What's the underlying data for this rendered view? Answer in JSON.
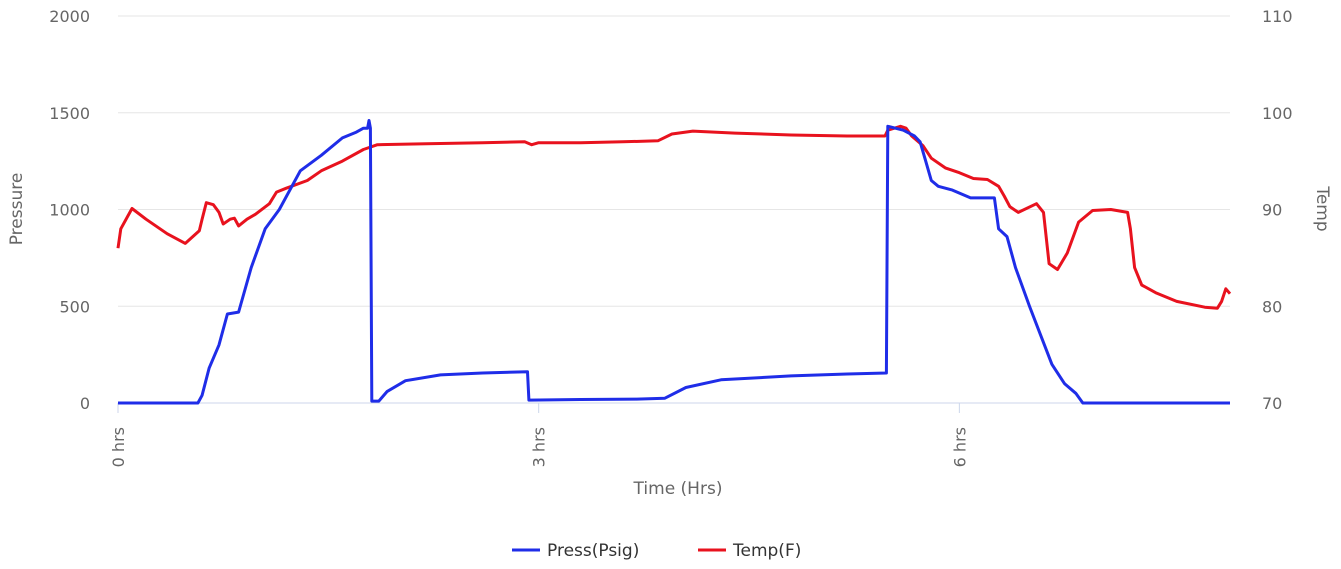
{
  "chart_data": {
    "type": "line",
    "title": "",
    "xlabel": "Time (Hrs)",
    "ylabel_left": "Pressure",
    "ylabel_right": "Temp",
    "x_unit": "hours",
    "x_ticks": [
      {
        "value": 0,
        "label": "0 hrs"
      },
      {
        "value": 3,
        "label": "3 hrs"
      },
      {
        "value": 6,
        "label": "6 hrs"
      }
    ],
    "xlim": [
      0,
      7.93
    ],
    "y_left_ticks": [
      "0",
      "500",
      "1000",
      "1500",
      "2000"
    ],
    "ylim_left": [
      0,
      2000
    ],
    "y_right_ticks": [
      "70",
      "80",
      "90",
      "100",
      "110"
    ],
    "ylim_right": [
      70,
      110
    ],
    "grid": true,
    "legend_position": "bottom",
    "series": [
      {
        "name": "Press(Psig)",
        "axis": "left",
        "color": "#1f2de8",
        "points": [
          [
            0,
            0
          ],
          [
            0.57,
            0
          ],
          [
            0.6,
            40
          ],
          [
            0.65,
            180
          ],
          [
            0.72,
            300
          ],
          [
            0.78,
            460
          ],
          [
            0.86,
            470
          ],
          [
            0.95,
            700
          ],
          [
            1.05,
            900
          ],
          [
            1.15,
            1000
          ],
          [
            1.3,
            1200
          ],
          [
            1.45,
            1280
          ],
          [
            1.6,
            1370
          ],
          [
            1.7,
            1400
          ],
          [
            1.75,
            1420
          ],
          [
            1.78,
            1420
          ],
          [
            1.79,
            1460
          ],
          [
            1.8,
            1420
          ],
          [
            1.81,
            10
          ],
          [
            1.86,
            10
          ],
          [
            1.92,
            60
          ],
          [
            2.05,
            115
          ],
          [
            2.3,
            145
          ],
          [
            2.6,
            155
          ],
          [
            2.92,
            162
          ],
          [
            2.93,
            15
          ],
          [
            3.3,
            18
          ],
          [
            3.7,
            20
          ],
          [
            3.9,
            25
          ],
          [
            4.05,
            80
          ],
          [
            4.3,
            120
          ],
          [
            4.8,
            140
          ],
          [
            5.2,
            150
          ],
          [
            5.48,
            155
          ],
          [
            5.49,
            1430
          ],
          [
            5.6,
            1410
          ],
          [
            5.68,
            1380
          ],
          [
            5.72,
            1350
          ],
          [
            5.76,
            1250
          ],
          [
            5.8,
            1150
          ],
          [
            5.85,
            1120
          ],
          [
            5.95,
            1100
          ],
          [
            6.08,
            1060
          ],
          [
            6.25,
            1060
          ],
          [
            6.28,
            900
          ],
          [
            6.34,
            860
          ],
          [
            6.4,
            700
          ],
          [
            6.5,
            500
          ],
          [
            6.58,
            350
          ],
          [
            6.66,
            200
          ],
          [
            6.75,
            100
          ],
          [
            6.83,
            50
          ],
          [
            6.88,
            0
          ],
          [
            7.93,
            0
          ]
        ]
      },
      {
        "name": "Temp(F)",
        "axis": "right",
        "color": "#e8121e",
        "points": [
          [
            0,
            86
          ],
          [
            0.02,
            88
          ],
          [
            0.1,
            90.1
          ],
          [
            0.2,
            89
          ],
          [
            0.35,
            87.5
          ],
          [
            0.48,
            86.5
          ],
          [
            0.58,
            87.8
          ],
          [
            0.6,
            89
          ],
          [
            0.63,
            90.7
          ],
          [
            0.68,
            90.5
          ],
          [
            0.72,
            89.7
          ],
          [
            0.75,
            88.5
          ],
          [
            0.8,
            89
          ],
          [
            0.83,
            89.1
          ],
          [
            0.86,
            88.3
          ],
          [
            0.92,
            89
          ],
          [
            0.98,
            89.5
          ],
          [
            1.08,
            90.6
          ],
          [
            1.13,
            91.8
          ],
          [
            1.2,
            92.2
          ],
          [
            1.35,
            93
          ],
          [
            1.45,
            94
          ],
          [
            1.6,
            95
          ],
          [
            1.75,
            96.2
          ],
          [
            1.85,
            96.7
          ],
          [
            2.2,
            96.8
          ],
          [
            2.6,
            96.9
          ],
          [
            2.9,
            97
          ],
          [
            2.95,
            96.7
          ],
          [
            3,
            96.9
          ],
          [
            3.3,
            96.9
          ],
          [
            3.6,
            97
          ],
          [
            3.85,
            97.1
          ],
          [
            3.95,
            97.8
          ],
          [
            4.1,
            98.1
          ],
          [
            4.4,
            97.9
          ],
          [
            4.8,
            97.7
          ],
          [
            5.2,
            97.6
          ],
          [
            5.47,
            97.6
          ],
          [
            5.49,
            98.2
          ],
          [
            5.58,
            98.6
          ],
          [
            5.62,
            98.4
          ],
          [
            5.66,
            97.6
          ],
          [
            5.74,
            96.6
          ],
          [
            5.8,
            95.3
          ],
          [
            5.9,
            94.3
          ],
          [
            6.0,
            93.8
          ],
          [
            6.1,
            93.2
          ],
          [
            6.2,
            93.1
          ],
          [
            6.28,
            92.4
          ],
          [
            6.32,
            91.4
          ],
          [
            6.36,
            90.3
          ],
          [
            6.42,
            89.7
          ],
          [
            6.55,
            90.6
          ],
          [
            6.6,
            89.7
          ],
          [
            6.64,
            84.4
          ],
          [
            6.7,
            83.8
          ],
          [
            6.77,
            85.5
          ],
          [
            6.85,
            88.7
          ],
          [
            6.95,
            89.9
          ],
          [
            7.08,
            90
          ],
          [
            7.2,
            89.7
          ],
          [
            7.22,
            88
          ],
          [
            7.25,
            84
          ],
          [
            7.3,
            82.2
          ],
          [
            7.4,
            81.4
          ],
          [
            7.55,
            80.5
          ],
          [
            7.75,
            79.9
          ],
          [
            7.84,
            79.8
          ],
          [
            7.87,
            80.5
          ],
          [
            7.9,
            81.8
          ],
          [
            7.93,
            81.3
          ]
        ]
      }
    ]
  }
}
